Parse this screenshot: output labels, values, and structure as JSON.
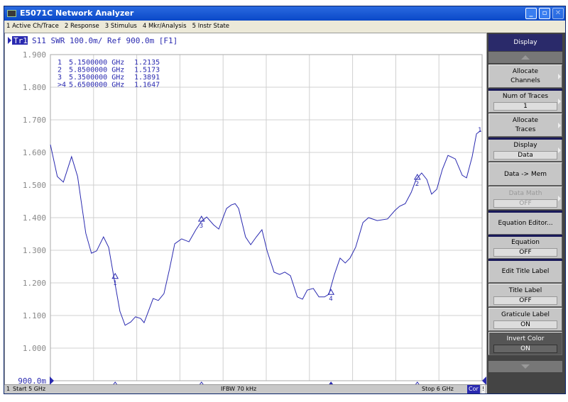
{
  "window": {
    "title": "E5071C Network Analyzer",
    "minimize": "_",
    "restore": "▫",
    "close": "✕"
  },
  "menu": [
    "1 Active Ch/Trace",
    "2 Response",
    "3 Stimulus",
    "4 Mkr/Analysis",
    "5 Instr State"
  ],
  "trace_header": {
    "trace": "Tr1",
    "text": "S11  SWR 100.0m/ Ref 900.0m [F1]"
  },
  "marker_table": [
    {
      "id": "1",
      "freq": "5.1500000 GHz",
      "value": "1.2135"
    },
    {
      "id": "2",
      "freq": "5.8500000 GHz",
      "value": "1.5173"
    },
    {
      "id": "3",
      "freq": "5.3500000 GHz",
      "value": "1.3891"
    },
    {
      "id": ">4",
      "freq": "5.6500000 GHz",
      "value": "1.1647"
    }
  ],
  "status": {
    "channel": "1",
    "start": "Start 5 GHz",
    "ifbw": "IFBW 70 kHz",
    "stop": "Stop 6 GHz",
    "cor": "Cor",
    "flag": "!"
  },
  "softkeys": {
    "title": "Display",
    "items": [
      {
        "label": "Allocate Channels",
        "value": null,
        "submenu": true
      },
      {
        "label": "Num of Traces",
        "value": "1",
        "submenu": true
      },
      {
        "label": "Allocate Traces",
        "value": null,
        "submenu": true
      },
      {
        "label": "Display",
        "value": "Data",
        "submenu": true
      },
      {
        "label": "Data -> Mem",
        "value": null,
        "submenu": false
      },
      {
        "label": "Data Math",
        "value": "OFF",
        "submenu": true,
        "disabled": true
      },
      {
        "label": "Equation Editor...",
        "value": null,
        "submenu": false
      },
      {
        "label": "Equation",
        "value": "OFF",
        "submenu": false
      },
      {
        "label": "Edit Title Label",
        "value": null,
        "submenu": false
      },
      {
        "label": "Title Label",
        "value": "OFF",
        "submenu": false
      },
      {
        "label": "Graticule Label",
        "value": "ON",
        "submenu": false
      },
      {
        "label": "Invert Color",
        "value": "ON",
        "submenu": false,
        "active": true
      }
    ]
  },
  "chart_data": {
    "type": "line",
    "xlabel": "",
    "ylabel": "",
    "xlim": [
      5,
      6
    ],
    "ylim": [
      0.9,
      1.9
    ],
    "yticks": [
      "1.900",
      "1.800",
      "1.700",
      "1.600",
      "1.500",
      "1.400",
      "1.300",
      "1.200",
      "1.100",
      "1.000",
      "900.0m"
    ],
    "grid": true,
    "trace_color": "#2a2ab0",
    "series": [
      {
        "x": [
          5.0,
          5.016,
          5.03,
          5.049,
          5.063,
          5.082,
          5.095,
          5.107,
          5.123,
          5.135,
          5.148,
          5.161,
          5.173,
          5.186,
          5.197,
          5.209,
          5.217,
          5.227,
          5.238,
          5.25,
          5.263,
          5.276,
          5.288,
          5.304,
          5.321,
          5.337,
          5.35,
          5.362,
          5.378,
          5.39,
          5.408,
          5.419,
          5.428,
          5.436,
          5.452,
          5.464,
          5.477,
          5.49,
          5.502,
          5.518,
          5.531,
          5.543,
          5.556,
          5.572,
          5.584,
          5.595,
          5.609,
          5.622,
          5.635,
          5.645,
          5.658,
          5.671,
          5.683,
          5.694,
          5.707,
          5.724,
          5.737,
          5.757,
          5.781,
          5.798,
          5.809,
          5.822,
          5.836,
          5.847,
          5.86,
          5.872,
          5.883,
          5.895,
          5.908,
          5.921,
          5.938,
          5.954,
          5.964,
          5.977,
          5.987,
          5.997
        ],
        "y": [
          1.624,
          1.526,
          1.509,
          1.587,
          1.526,
          1.352,
          1.291,
          1.298,
          1.341,
          1.309,
          1.21,
          1.113,
          1.07,
          1.08,
          1.096,
          1.091,
          1.078,
          1.113,
          1.152,
          1.146,
          1.167,
          1.243,
          1.32,
          1.335,
          1.326,
          1.363,
          1.389,
          1.402,
          1.378,
          1.365,
          1.428,
          1.439,
          1.443,
          1.428,
          1.341,
          1.317,
          1.341,
          1.363,
          1.298,
          1.233,
          1.226,
          1.233,
          1.222,
          1.157,
          1.15,
          1.178,
          1.183,
          1.157,
          1.157,
          1.165,
          1.226,
          1.276,
          1.261,
          1.276,
          1.309,
          1.385,
          1.4,
          1.391,
          1.396,
          1.422,
          1.435,
          1.443,
          1.478,
          1.517,
          1.537,
          1.517,
          1.472,
          1.487,
          1.548,
          1.591,
          1.58,
          1.53,
          1.522,
          1.587,
          1.657,
          1.667
        ]
      }
    ],
    "markers": [
      {
        "label": "1",
        "x": 5.15,
        "y": 1.2135,
        "active": false
      },
      {
        "label": "2",
        "x": 5.85,
        "y": 1.5173,
        "active": false
      },
      {
        "label": "3",
        "x": 5.35,
        "y": 1.3891,
        "active": false
      },
      {
        "label": "4",
        "x": 5.65,
        "y": 1.1647,
        "active": true
      }
    ],
    "end_label": "1"
  }
}
